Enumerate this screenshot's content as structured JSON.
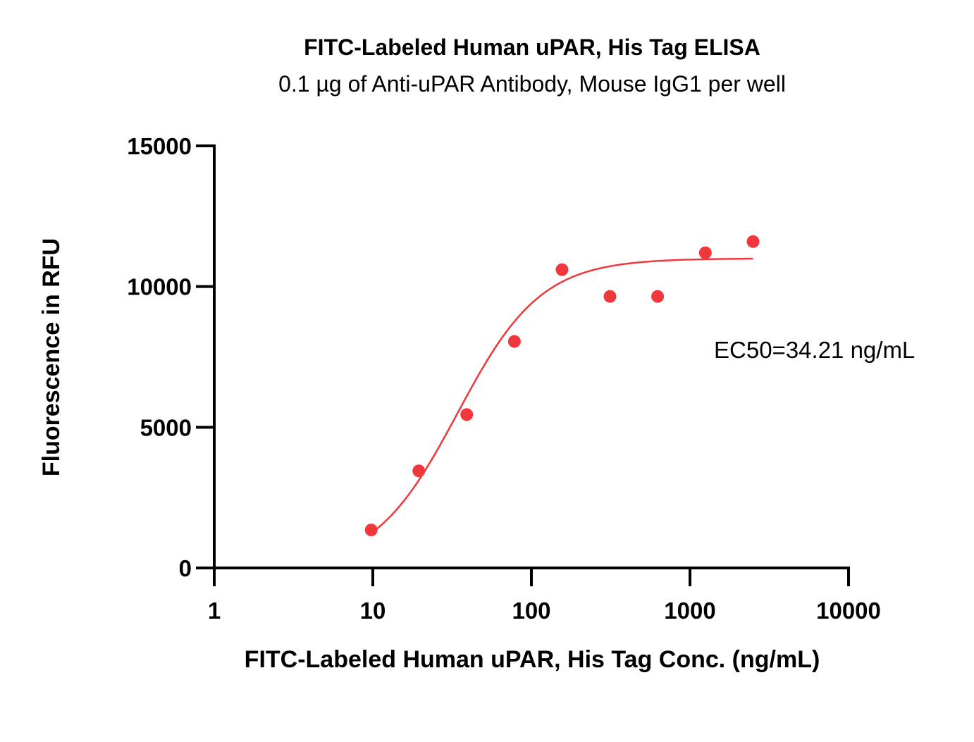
{
  "chart_data": {
    "type": "scatter",
    "title": "FITC-Labeled Human uPAR, His Tag ELISA",
    "subtitle": "0.1 µg of Anti-uPAR Antibody, Mouse IgG1 per well",
    "xlabel": "FITC-Labeled Human uPAR, His Tag Conc. (ng/mL)",
    "ylabel": "Fluorescence in RFU",
    "xscale": "log",
    "xlim": [
      1,
      10000
    ],
    "ylim": [
      0,
      15000
    ],
    "x_ticks": [
      1,
      10,
      100,
      1000,
      10000
    ],
    "x_tick_labels": [
      "1",
      "10",
      "100",
      "1000",
      "10000"
    ],
    "y_ticks": [
      0,
      5000,
      10000,
      15000
    ],
    "y_tick_labels": [
      "0",
      "5000",
      "10000",
      "15000"
    ],
    "grid": false,
    "color": "#f0373c",
    "points": {
      "x": [
        9.77,
        19.5,
        39.1,
        78.1,
        156,
        313,
        625,
        1250,
        2500
      ],
      "y": [
        1350,
        3450,
        5450,
        8050,
        10600,
        9650,
        9650,
        11200,
        11600
      ]
    },
    "fit": {
      "model": "4PL",
      "bottom": 0,
      "top": 11000,
      "ec50": 34.21,
      "hill": 1.65,
      "x_range": [
        9.77,
        2500
      ]
    },
    "annotation": "EC50=34.21  ng/mL"
  }
}
